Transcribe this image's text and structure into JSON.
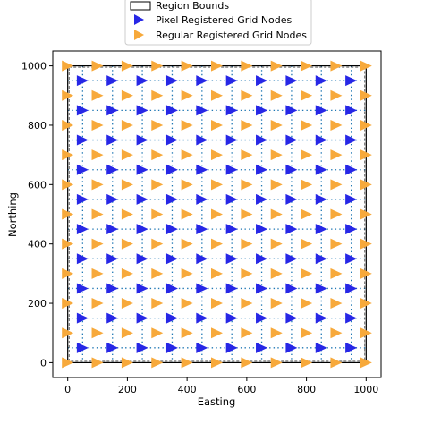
{
  "chart_data": {
    "type": "scatter",
    "xlabel": "Easting",
    "ylabel": "Northing",
    "xlim": [
      -50,
      1050
    ],
    "ylim": [
      -50,
      1050
    ],
    "xticks": [
      0,
      200,
      400,
      600,
      800,
      1000
    ],
    "yticks": [
      0,
      200,
      400,
      600,
      800,
      1000
    ],
    "grid": false,
    "legend_position": "upper-center-outside",
    "region": {
      "name": "Region Bounds",
      "x": [
        0,
        1000
      ],
      "y": [
        0,
        1000
      ]
    },
    "series": [
      {
        "name": "Pixel Registered Grid Nodes",
        "marker": "triangle-right",
        "color": "#2727e6",
        "x": [
          50,
          150,
          250,
          350,
          450,
          550,
          650,
          750,
          850,
          950
        ],
        "y": [
          50,
          150,
          250,
          350,
          450,
          550,
          650,
          750,
          850,
          950
        ]
      },
      {
        "name": "Regular Registered Grid Nodes",
        "marker": "triangle-right",
        "color": "#f7a93b",
        "x": [
          0,
          100,
          200,
          300,
          400,
          500,
          600,
          700,
          800,
          900,
          1000
        ],
        "y": [
          0,
          100,
          200,
          300,
          400,
          500,
          600,
          700,
          800,
          900,
          1000
        ]
      }
    ],
    "grid_lines_color": "#1f77b4"
  }
}
